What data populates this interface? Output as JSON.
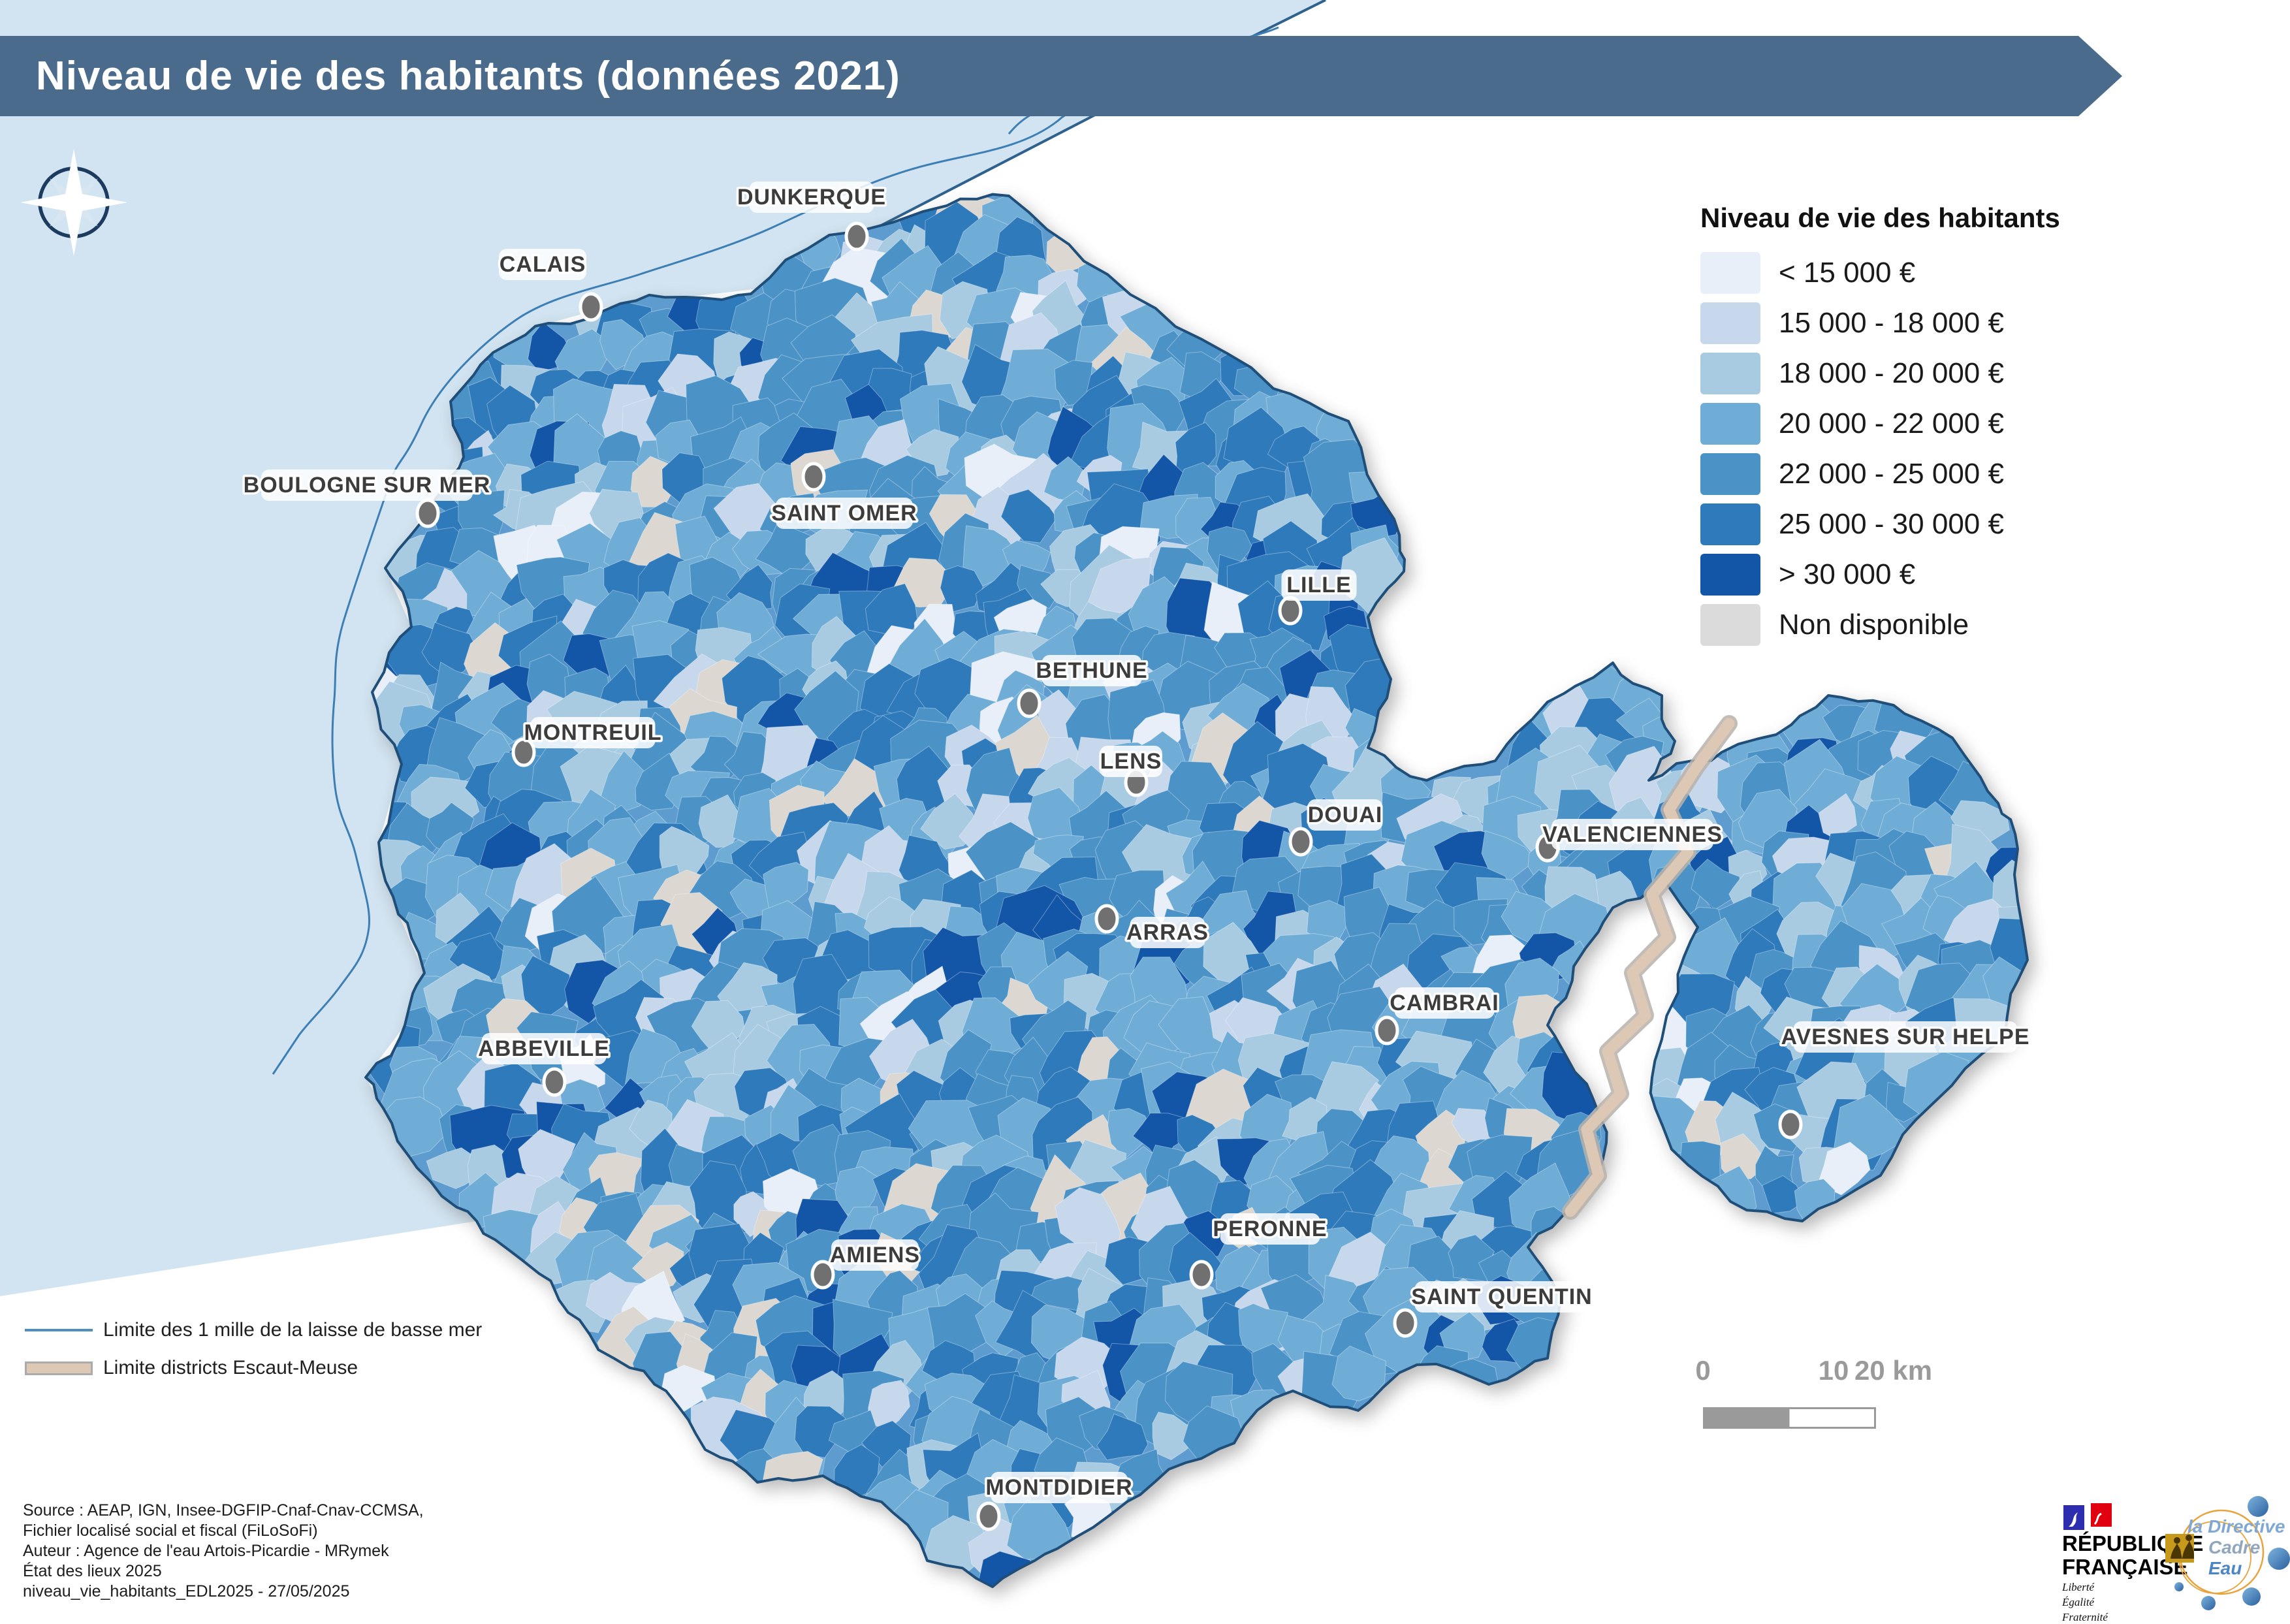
{
  "banner": {
    "title": "Niveau de vie des habitants (données 2021)"
  },
  "legend": {
    "title": "Niveau de vie des habitants",
    "classes": [
      {
        "label": "< 15 000 €",
        "color": "#E9EFF9"
      },
      {
        "label": "15 000 - 18 000 €",
        "color": "#C7D7EC"
      },
      {
        "label": "18 000 - 20 000 €",
        "color": "#A8CBE2"
      },
      {
        "label": "20 000 - 22 000 €",
        "color": "#6FADD6"
      },
      {
        "label": "22 000 - 25 000 €",
        "color": "#4B93C7"
      },
      {
        "label": "25 000 - 30 000 €",
        "color": "#2E7ABB"
      },
      {
        "label": "> 30 000 €",
        "color": "#1356A8"
      },
      {
        "label": "Non disponible",
        "color": "#DBDBDB"
      }
    ]
  },
  "map": {
    "na_map_color": "#DCD7D0",
    "cities": [
      {
        "name": "DUNKERQUE",
        "label": [
          1243,
          302
        ],
        "marker": [
          1312,
          362
        ]
      },
      {
        "name": "CALAIS",
        "label": [
          831,
          405
        ],
        "marker": [
          905,
          470
        ]
      },
      {
        "name": "BOULOGNE SUR MER",
        "label": [
          562,
          743
        ],
        "marker": [
          655,
          786
        ]
      },
      {
        "name": "SAINT OMER",
        "label": [
          1293,
          786
        ],
        "marker": [
          1246,
          730
        ]
      },
      {
        "name": "LILLE",
        "label": [
          2020,
          896
        ],
        "marker": [
          1976,
          935
        ]
      },
      {
        "name": "BETHUNE",
        "label": [
          1672,
          1027
        ],
        "marker": [
          1576,
          1077
        ]
      },
      {
        "name": "MONTREUIL",
        "label": [
          908,
          1122
        ],
        "marker": [
          802,
          1152
        ]
      },
      {
        "name": "LENS",
        "label": [
          1732,
          1166
        ],
        "marker": [
          1740,
          1198
        ]
      },
      {
        "name": "DOUAI",
        "label": [
          2060,
          1248
        ],
        "marker": [
          1992,
          1289
        ]
      },
      {
        "name": "VALENCIENNES",
        "label": [
          2500,
          1278
        ],
        "marker": [
          2370,
          1298
        ]
      },
      {
        "name": "ARRAS",
        "label": [
          1788,
          1428
        ],
        "marker": [
          1695,
          1407
        ]
      },
      {
        "name": "CAMBRAI",
        "label": [
          2212,
          1536
        ],
        "marker": [
          2124,
          1578
        ]
      },
      {
        "name": "ABBEVILLE",
        "label": [
          833,
          1606
        ],
        "marker": [
          849,
          1657
        ]
      },
      {
        "name": "AVESNES SUR HELPE",
        "label": [
          2918,
          1588
        ],
        "marker": [
          2742,
          1722
        ]
      },
      {
        "name": "AMIENS",
        "label": [
          1340,
          1922
        ],
        "marker": [
          1260,
          1952
        ]
      },
      {
        "name": "PERONNE",
        "label": [
          1945,
          1882
        ],
        "marker": [
          1840,
          1952
        ]
      },
      {
        "name": "SAINT QUENTIN",
        "label": [
          2300,
          1986
        ],
        "marker": [
          2152,
          2026
        ]
      },
      {
        "name": "MONTDIDIER",
        "label": [
          1622,
          2278
        ],
        "marker": [
          1514,
          2322
        ]
      }
    ]
  },
  "line_legend": [
    {
      "label": "Limite des 1 mille de la laisse de basse mer",
      "color": "#4E8FC0"
    },
    {
      "label": "Limite districts Escaut-Meuse",
      "color": "#DCC8B5",
      "border": "#ABABAB"
    }
  ],
  "scalebar": {
    "labels": [
      "0",
      "10",
      "20 km"
    ]
  },
  "source": {
    "lines": [
      "Source : AEAP, IGN, Insee-DGFIP-Cnaf-Cnav-CCMSA,",
      "Fichier localisé social et fiscal (FiLoSoFi)",
      "Auteur : Agence de l'eau Artois-Picardie - MRymek",
      "État des lieux 2025",
      "niveau_vie_habitants_EDL2025 - 27/05/2025"
    ]
  },
  "logos": {
    "republique": {
      "line1": "RÉPUBLIQUE",
      "line2": "FRANÇAISE",
      "motto": [
        "Liberté",
        "Égalité",
        "Fraternité"
      ]
    },
    "dce": {
      "line1": "la Directive",
      "line2": "Cadre",
      "line3": "Eau"
    }
  },
  "colors": {
    "banner": "#4A6B8C",
    "sea": "#D2E4F1",
    "coastline": "#1F4E79",
    "mille_line": "#3D7FB5",
    "district_band": "#DCC8B5",
    "city_marker": "#707070",
    "city_label": "#3C3C3C"
  }
}
